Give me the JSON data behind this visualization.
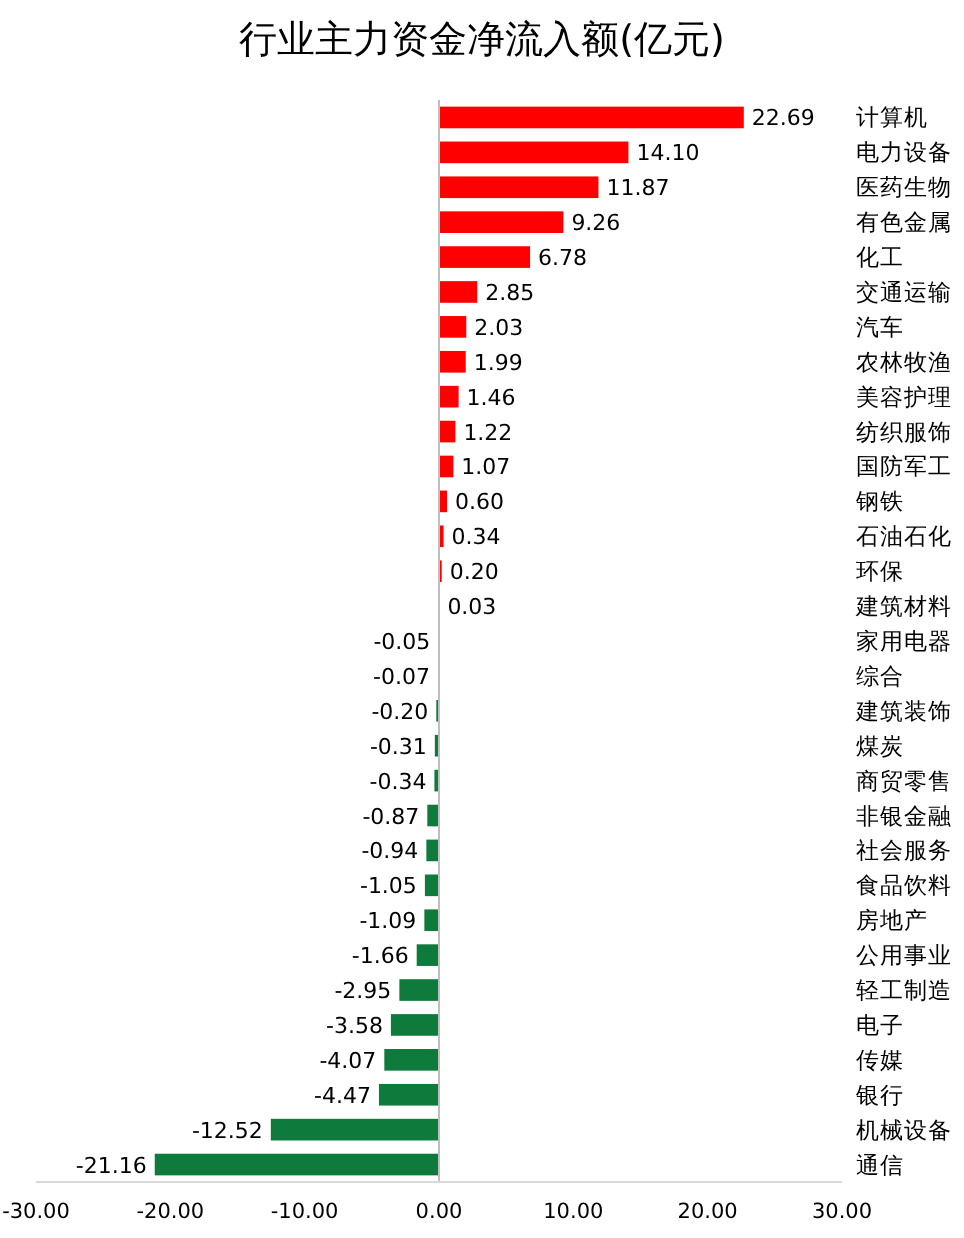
{
  "chart_data": {
    "type": "bar",
    "orientation": "horizontal",
    "title": "行业主力资金净流入额(亿元)",
    "categories": [
      "计算机",
      "电力设备",
      "医药生物",
      "有色金属",
      "化工",
      "交通运输",
      "汽车",
      "农林牧渔",
      "美容护理",
      "纺织服饰",
      "国防军工",
      "钢铁",
      "石油石化",
      "环保",
      "建筑材料",
      "家用电器",
      "综合",
      "建筑装饰",
      "煤炭",
      "商贸零售",
      "非银金融",
      "社会服务",
      "食品饮料",
      "房地产",
      "公用事业",
      "轻工制造",
      "电子",
      "传媒",
      "银行",
      "机械设备",
      "通信"
    ],
    "values": [
      22.69,
      14.1,
      11.87,
      9.26,
      6.78,
      2.85,
      2.03,
      1.99,
      1.46,
      1.22,
      1.07,
      0.6,
      0.34,
      0.2,
      0.03,
      -0.05,
      -0.07,
      -0.2,
      -0.31,
      -0.34,
      -0.87,
      -0.94,
      -1.05,
      -1.09,
      -1.66,
      -2.95,
      -3.58,
      -4.07,
      -4.47,
      -12.52,
      -21.16
    ],
    "value_labels": [
      "22.69",
      "14.10",
      "11.87",
      "9.26",
      "6.78",
      "2.85",
      "2.03",
      "1.99",
      "1.46",
      "1.22",
      "1.07",
      "0.60",
      "0.34",
      "0.20",
      "0.03",
      "-0.05",
      "-0.07",
      "-0.20",
      "-0.31",
      "-0.34",
      "-0.87",
      "-0.94",
      "-1.05",
      "-1.09",
      "-1.66",
      "-2.95",
      "-3.58",
      "-4.07",
      "-4.47",
      "-12.52",
      "-21.16"
    ],
    "colors": [
      "#ff0000",
      "#ff0000",
      "#ff0000",
      "#ff0000",
      "#ff0000",
      "#ff0000",
      "#ff0000",
      "#ff0000",
      "#ff0000",
      "#ff0000",
      "#ff0000",
      "#ff0000",
      "#ff0000",
      "#ff0000",
      "#ff0000",
      "#0e7a3c",
      "#0e7a3c",
      "#0e7a3c",
      "#0e7a3c",
      "#0e7a3c",
      "#0e7a3c",
      "#0e7a3c",
      "#0e7a3c",
      "#0e7a3c",
      "#0e7a3c",
      "#0e7a3c",
      "#0e7a3c",
      "#0e7a3c",
      "#0e7a3c",
      "#0e7a3c",
      "#0e7a3c"
    ],
    "xlim": [
      -30,
      30
    ],
    "xticks": [
      {
        "value": -30,
        "label": "-30.00"
      },
      {
        "value": -20,
        "label": "-20.00"
      },
      {
        "value": -10,
        "label": "-10.00"
      },
      {
        "value": 0,
        "label": "0.00"
      },
      {
        "value": 10,
        "label": "10.00"
      },
      {
        "value": 20,
        "label": "20.00"
      },
      {
        "value": 30,
        "label": "30.00"
      }
    ]
  }
}
